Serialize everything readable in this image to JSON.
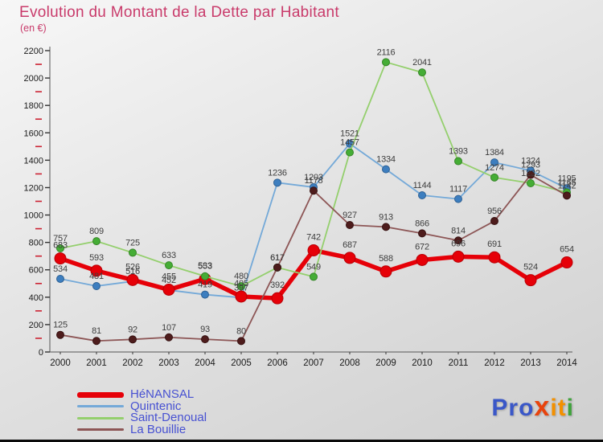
{
  "title": "Evolution du Montant de la Dette par Habitant",
  "subtitle": "(en €)",
  "colors": {
    "title_text": "#c93b6b",
    "axis": "#555555",
    "tick_major": "#333333",
    "tick_minor_red": "#cc2233",
    "point_label": "#3e3e3e",
    "axis_label": "#1a1a1a",
    "legend_text": "#4751d2",
    "background_top": "#f7f7f7",
    "background_bottom": "#cfcfcf"
  },
  "chart_data": {
    "type": "line",
    "title": "Evolution du Montant de la Dette par Habitant (en €)",
    "x": [
      2000,
      2001,
      2002,
      2003,
      2004,
      2005,
      2006,
      2007,
      2008,
      2009,
      2010,
      2011,
      2012,
      2013,
      2014
    ],
    "ylim": [
      0,
      2200
    ],
    "ytick_step": 200,
    "grid": false,
    "legend_position": "bottom-left",
    "series": [
      {
        "name": "HéNANSAL",
        "line_color": "#e60008",
        "dot_color": "#e60008",
        "dot_stroke": "#b80006",
        "line_width": 5.5,
        "marker_radius": 7,
        "values": [
          683,
          593,
          526,
          455,
          533,
          405,
          392,
          742,
          687,
          588,
          672,
          696,
          691,
          524,
          654
        ]
      },
      {
        "name": "Quintenic",
        "line_color": "#74a9d8",
        "dot_color": "#3d7ebf",
        "dot_stroke": "#2f6194",
        "line_width": 1.8,
        "marker_radius": 4.5,
        "values": [
          534,
          481,
          516,
          452,
          419,
          397,
          1236,
          1203,
          1521,
          1334,
          1144,
          1117,
          1384,
          1324,
          1195
        ]
      },
      {
        "name": "Saint-Denoual",
        "line_color": "#94cf6d",
        "dot_color": "#45ad35",
        "dot_stroke": "#358527",
        "line_width": 1.8,
        "marker_radius": 4.5,
        "values": [
          757,
          809,
          725,
          633,
          553,
          480,
          617,
          549,
          1457,
          2116,
          2041,
          1393,
          1274,
          1232,
          1165
        ]
      },
      {
        "name": "La Bouillie",
        "line_color": "#8d5656",
        "dot_color": "#4e1c1c",
        "dot_stroke": "#361111",
        "line_width": 1.8,
        "marker_radius": 4.5,
        "values": [
          125,
          81,
          92,
          107,
          93,
          80,
          617,
          1178,
          927,
          913,
          866,
          814,
          956,
          1293,
          1142
        ]
      }
    ],
    "draw_order": [
      1,
      0,
      2,
      3
    ]
  },
  "logo": {
    "text": "Proxiti",
    "parts": [
      {
        "t": "Pro",
        "c": "#3a57c8",
        "x": false
      },
      {
        "t": "x",
        "c": "#e8430d",
        "x": true
      },
      {
        "t": "it",
        "c": "#f39000",
        "x": false
      },
      {
        "t": "i",
        "c": "#3fa33c",
        "x": false
      }
    ]
  }
}
